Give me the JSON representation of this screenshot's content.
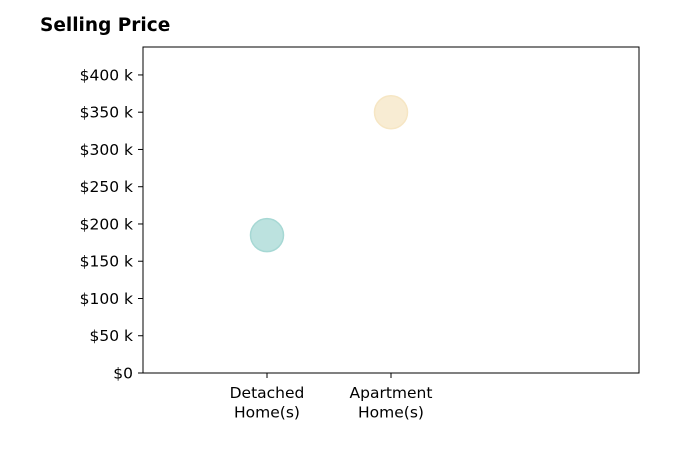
{
  "chart_data": {
    "type": "scatter",
    "title": "Selling Price",
    "categories": [
      "Detached\nHome(s)",
      "Apartment\nHome(s)"
    ],
    "ylim": [
      0,
      437.5
    ],
    "y_ticks": [
      0,
      50,
      100,
      150,
      200,
      250,
      300,
      350,
      400
    ],
    "y_tick_labels": [
      "$0",
      "$50 k",
      "$100 k",
      "$150 k",
      "$200 k",
      "$250 k",
      "$300 k",
      "$350 k",
      "$400 k"
    ],
    "points": [
      {
        "category": "Detached\nHome(s)",
        "value": 185,
        "color": "#a6d8d4"
      },
      {
        "category": "Apartment\nHome(s)",
        "value": 350,
        "color": "#f6e6c4"
      }
    ],
    "grid": false,
    "legend": "none"
  }
}
